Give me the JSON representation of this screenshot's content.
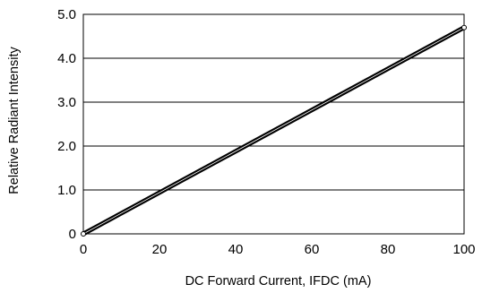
{
  "chart_data": {
    "type": "line",
    "title": "",
    "xlabel": "DC Forward Current, IFDC (mA)",
    "ylabel": "Relative Radiant Intensity",
    "xlim": [
      0,
      100
    ],
    "ylim": [
      0,
      5.0
    ],
    "x_ticks": [
      0,
      20,
      40,
      60,
      80,
      100
    ],
    "x_tick_labels": [
      "0",
      "20",
      "40",
      "60",
      "80",
      "100"
    ],
    "y_ticks": [
      0,
      1.0,
      2.0,
      3.0,
      4.0,
      5.0
    ],
    "y_tick_labels": [
      "0",
      "1.0",
      "2.0",
      "3.0",
      "4.0",
      "5.0"
    ],
    "grid": "horizontal",
    "legend": "none",
    "series": [
      {
        "x": [
          0,
          100
        ],
        "y": [
          0,
          4.7
        ],
        "color": "#000000"
      }
    ]
  }
}
